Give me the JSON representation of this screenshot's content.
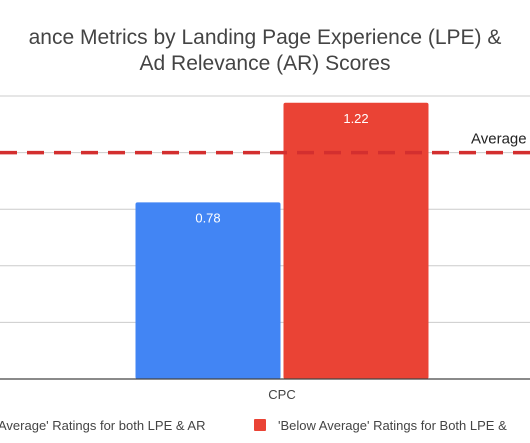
{
  "chart_data": {
    "type": "bar",
    "title_line1": "ance Metrics by Landing Page Experience (LPE) &",
    "title_line2": "Ad Relevance (AR) Scores",
    "categories": [
      "CPC"
    ],
    "series": [
      {
        "name": "Average' Ratings for both LPE & AR",
        "values": [
          0.78
        ],
        "labels": [
          "0.78"
        ],
        "color": "#4285f4"
      },
      {
        "name": "'Below Average' Ratings for Both LPE &",
        "values": [
          1.22
        ],
        "labels": [
          "1.22"
        ],
        "color": "#ea4335"
      }
    ],
    "reference_line": {
      "value": 1.0,
      "label": "Average",
      "color": "#d32f2f",
      "style": "dashed"
    },
    "ylim": [
      0,
      1.25
    ],
    "grid": true,
    "legend_position": "bottom",
    "colors": {
      "grid": "#cccccc",
      "axis": "#444444",
      "text": "#444444"
    }
  }
}
